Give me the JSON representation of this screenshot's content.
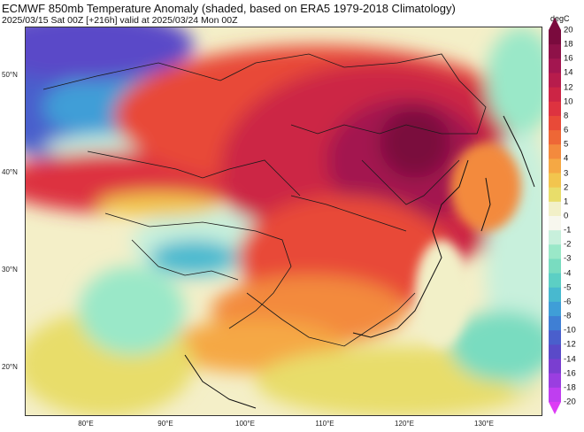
{
  "title": "ECMWF 850mb Temperature Anomaly (shaded, based on ERA5 1979-2018 Climatology)",
  "subtitle": "2025/03/15 Sat 00Z [+216h] valid at 2025/03/24 Mon 00Z",
  "lat_labels": [
    "50°N",
    "40°N",
    "30°N",
    "20°N"
  ],
  "lon_labels": [
    "80°E",
    "90°E",
    "100°E",
    "110°E",
    "120°E",
    "130°E"
  ],
  "colorbar": {
    "unit": "degC",
    "labels": [
      "20",
      "18",
      "16",
      "14",
      "12",
      "10",
      "8",
      "6",
      "5",
      "4",
      "3",
      "2",
      "1",
      "0",
      "-1",
      "-2",
      "-3",
      "-4",
      "-5",
      "-6",
      "-8",
      "-10",
      "-12",
      "-14",
      "-16",
      "-18",
      "-20"
    ],
    "colors": [
      "#7a0a3d",
      "#8e1148",
      "#a31650",
      "#b71c4c",
      "#cc2545",
      "#dd3340",
      "#e84a38",
      "#ee6736",
      "#f38a3d",
      "#f5a844",
      "#f2c54e",
      "#e8dd6a",
      "#f2f0c8",
      "#f7f7ee",
      "#c8f0dc",
      "#9ae8c8",
      "#79dcc0",
      "#5ccfc4",
      "#48b9cf",
      "#3f9ed7",
      "#3f7fd4",
      "#4a5fcc",
      "#5a4ac8",
      "#7a3ed0",
      "#9a3ee0",
      "#bf3ef0",
      "#dd3cf5"
    ]
  }
}
